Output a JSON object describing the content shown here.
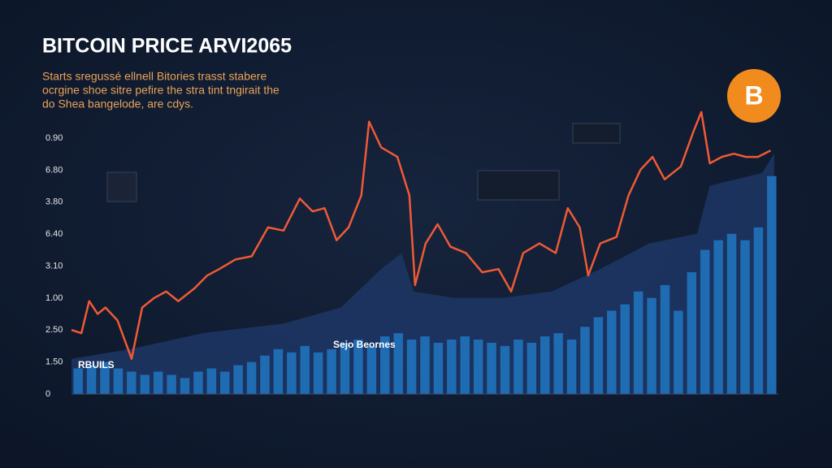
{
  "chart_data": {
    "type": "combo",
    "title": "BITCOIN PRICE ARVI2065",
    "subtitle": [
      "Starts sregussé ellnell Bitories trasst stabere",
      "ocrgine shoe sitre pefire the stra tint tngirait the",
      "do Shea bangelode, are cdys."
    ],
    "y_labels": [
      "0.90",
      "6.80",
      "3.80",
      "6.40",
      "3.10",
      "1.00",
      "2.50",
      "1.50",
      "0"
    ],
    "annotations": [
      "RBUILS",
      "Sejo Beornes"
    ],
    "logo": "B",
    "xlim": [
      0,
      100
    ],
    "ylim": [
      0,
      9
    ],
    "series": [
      {
        "type": "area",
        "color": "#1d3563",
        "x": [
          0,
          8.3,
          18.6,
          30,
          38.1,
          43.8,
          46.7,
          48.4,
          54.1,
          61,
          67.9,
          74.8,
          81.7,
          88.5,
          90.3,
          97.7,
          99.4
        ],
        "values": [
          1.1,
          1.4,
          1.9,
          2.2,
          2.7,
          3.9,
          4.4,
          3.2,
          3.0,
          3.0,
          3.2,
          3.9,
          4.7,
          5.0,
          6.5,
          6.9,
          7.5
        ]
      },
      {
        "type": "bar",
        "color": "#1f6cb3",
        "values": [
          0.8,
          0.9,
          1.0,
          0.8,
          0.7,
          0.6,
          0.7,
          0.6,
          0.5,
          0.7,
          0.8,
          0.7,
          0.9,
          1.0,
          1.2,
          1.4,
          1.3,
          1.5,
          1.3,
          1.4,
          1.6,
          1.7,
          1.5,
          1.8,
          1.9,
          1.7,
          1.8,
          1.6,
          1.7,
          1.8,
          1.7,
          1.6,
          1.5,
          1.7,
          1.6,
          1.8,
          1.9,
          1.7,
          2.1,
          2.4,
          2.6,
          2.8,
          3.2,
          3.0,
          3.4,
          2.6,
          3.8,
          4.5,
          4.8,
          5.0,
          4.8,
          5.2,
          6.8
        ]
      },
      {
        "type": "line",
        "color": "#f05a35",
        "x": [
          0,
          1.4,
          2.5,
          3.7,
          4.8,
          6.5,
          8.5,
          10,
          11.7,
          13.4,
          15.1,
          17.4,
          19.2,
          20.9,
          23.2,
          25.5,
          27.8,
          30,
          32.3,
          34.1,
          35.8,
          37.5,
          39.2,
          41,
          42.1,
          43.8,
          46.1,
          47.8,
          48.6,
          50.1,
          51.8,
          53.6,
          55.8,
          58.1,
          60.4,
          62.2,
          63.9,
          66.2,
          68.5,
          70.2,
          71.9,
          73.1,
          74.8,
          77.1,
          78.8,
          80.5,
          82.2,
          83.9,
          86.2,
          88,
          89.1,
          90.3,
          92,
          93.7,
          95.4,
          97.1,
          98.9
        ],
        "values": [
          2.0,
          1.9,
          2.9,
          2.5,
          2.7,
          2.3,
          1.1,
          2.7,
          3.0,
          3.2,
          2.9,
          3.3,
          3.7,
          3.9,
          4.2,
          4.3,
          5.2,
          5.1,
          6.1,
          5.7,
          5.8,
          4.8,
          5.2,
          6.2,
          8.5,
          7.7,
          7.4,
          6.2,
          3.4,
          4.7,
          5.3,
          4.6,
          4.4,
          3.8,
          3.9,
          3.2,
          4.4,
          4.7,
          4.4,
          5.8,
          5.2,
          3.7,
          4.7,
          4.9,
          6.2,
          7.0,
          7.4,
          6.7,
          7.1,
          8.2,
          8.8,
          7.2,
          7.4,
          7.5,
          7.4,
          7.4,
          7.6
        ]
      }
    ]
  }
}
